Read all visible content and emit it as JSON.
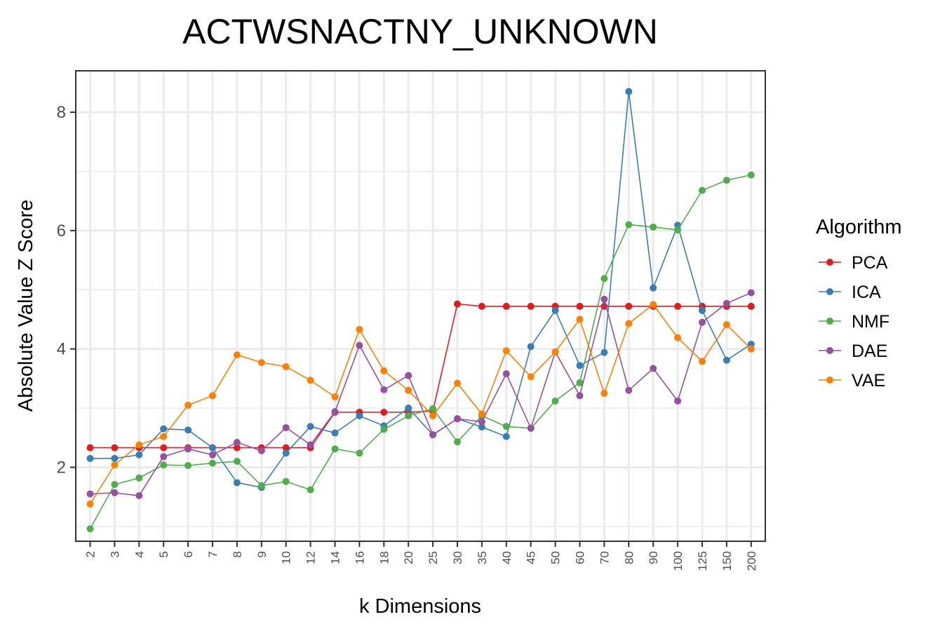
{
  "chart_data": {
    "type": "line",
    "title": "ACTWSNACTNY_UNKNOWN",
    "xlabel": "k Dimensions",
    "ylabel": "Absolute Value Z Score",
    "categories": [
      "2",
      "3",
      "4",
      "5",
      "6",
      "7",
      "8",
      "9",
      "10",
      "12",
      "14",
      "16",
      "18",
      "20",
      "25",
      "30",
      "35",
      "40",
      "45",
      "50",
      "60",
      "70",
      "80",
      "90",
      "100",
      "125",
      "150",
      "200"
    ],
    "ylim": [
      0.75,
      8.7
    ],
    "yticks": [
      "2",
      "4",
      "6",
      "8"
    ],
    "grid": true,
    "legend": {
      "title": "Algorithm",
      "position": "right"
    },
    "series": [
      {
        "name": "PCA",
        "color": "#E41A1C",
        "values": [
          2.33,
          2.33,
          2.33,
          2.33,
          2.33,
          2.33,
          2.33,
          2.33,
          2.33,
          2.33,
          2.93,
          2.93,
          2.93,
          2.93,
          2.95,
          4.76,
          4.72,
          4.72,
          4.72,
          4.72,
          4.72,
          4.72,
          4.72,
          4.72,
          4.72,
          4.72,
          4.72,
          4.72
        ]
      },
      {
        "name": "ICA",
        "color": "#377EB8",
        "values": [
          2.15,
          2.15,
          2.21,
          2.65,
          2.63,
          2.33,
          1.74,
          1.66,
          2.24,
          2.69,
          2.58,
          2.87,
          2.7,
          3.0,
          2.55,
          2.82,
          2.68,
          2.52,
          4.04,
          4.65,
          3.72,
          3.94,
          8.35,
          5.03,
          6.09,
          4.65,
          3.81,
          4.08
        ]
      },
      {
        "name": "NMF",
        "color": "#4DAF4A",
        "values": [
          0.96,
          1.71,
          1.82,
          2.04,
          2.03,
          2.07,
          2.1,
          1.69,
          1.76,
          1.62,
          2.31,
          2.24,
          2.64,
          2.87,
          2.99,
          2.43,
          2.87,
          2.69,
          2.66,
          3.12,
          3.43,
          5.19,
          6.1,
          6.06,
          6.01,
          6.68,
          6.85,
          6.94
        ]
      },
      {
        "name": "DAE",
        "color": "#984EA3",
        "values": [
          1.55,
          1.57,
          1.52,
          2.18,
          2.31,
          2.21,
          2.42,
          2.28,
          2.67,
          2.38,
          2.94,
          4.06,
          3.31,
          3.55,
          2.55,
          2.82,
          2.77,
          3.58,
          2.66,
          3.95,
          3.21,
          4.84,
          3.3,
          3.67,
          3.12,
          4.45,
          4.77,
          4.95
        ]
      },
      {
        "name": "VAE",
        "color": "#FF7F00",
        "values": [
          1.38,
          2.04,
          2.38,
          2.52,
          3.05,
          3.21,
          3.9,
          3.77,
          3.7,
          3.47,
          3.19,
          4.33,
          3.63,
          3.3,
          2.87,
          3.42,
          2.9,
          3.97,
          3.53,
          3.95,
          4.5,
          3.25,
          4.43,
          4.75,
          4.19,
          3.79,
          4.41,
          4.0
        ]
      }
    ]
  }
}
